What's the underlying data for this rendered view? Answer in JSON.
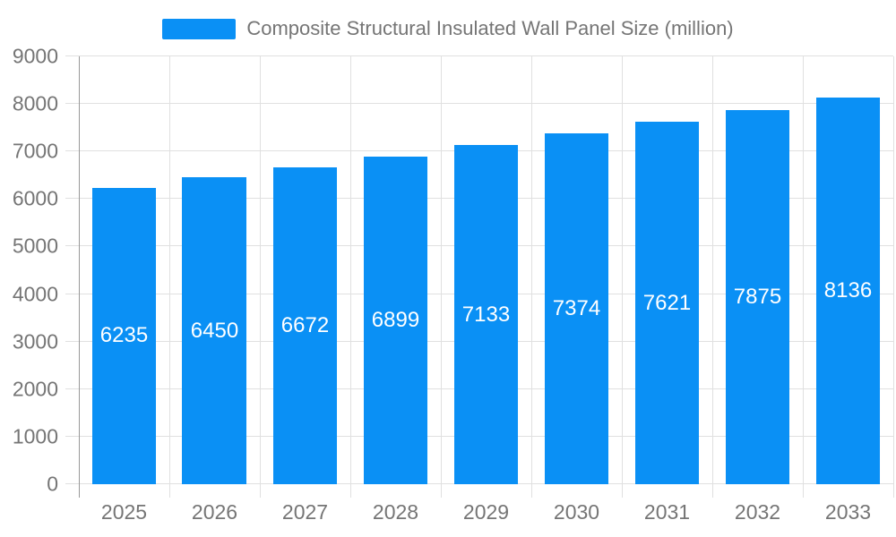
{
  "legend": {
    "label": "Composite Structural Insulated Wall Panel Size (million)"
  },
  "chart_data": {
    "type": "bar",
    "title": "",
    "xlabel": "",
    "ylabel": "",
    "categories": [
      "2025",
      "2026",
      "2027",
      "2028",
      "2029",
      "2030",
      "2031",
      "2032",
      "2033"
    ],
    "values": [
      6235,
      6450,
      6672,
      6899,
      7133,
      7374,
      7621,
      7875,
      8136
    ],
    "series": [
      {
        "name": "Composite Structural Insulated Wall Panel Size (million)",
        "values": [
          6235,
          6450,
          6672,
          6899,
          7133,
          7374,
          7621,
          7875,
          8136
        ]
      }
    ],
    "ylim": [
      0,
      9000
    ],
    "ytick_step": 1000,
    "yticks": [
      0,
      1000,
      2000,
      3000,
      4000,
      5000,
      6000,
      7000,
      8000,
      9000
    ],
    "grid": "on",
    "legend_position": "top",
    "bar_labels_inside": true,
    "colors": {
      "bar": "#0a90f5",
      "bar_label": "#ffffff",
      "axis_text": "#757575",
      "legend_text": "#757575",
      "grid_line": "#e0e0e0",
      "axis_line": "#999999"
    }
  }
}
